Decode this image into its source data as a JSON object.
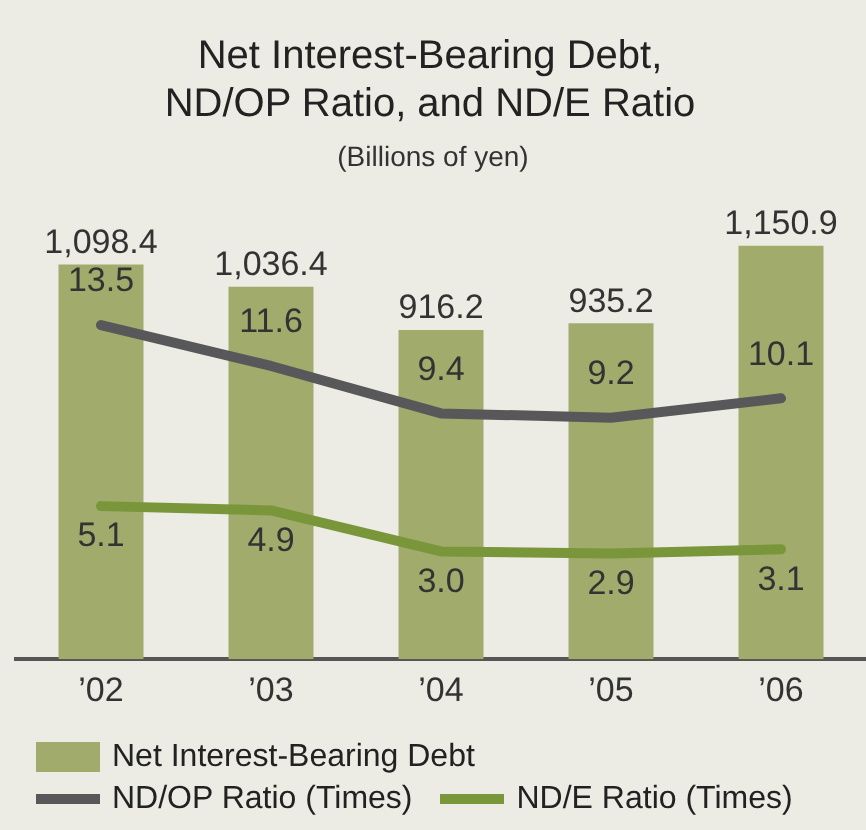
{
  "chart_data": {
    "type": "bar",
    "title": "Net Interest-Bearing Debt, ND/OP Ratio, and ND/E Ratio",
    "subtitle": "(Billions of yen)",
    "categories": [
      "’02",
      "’03",
      "’04",
      "’05",
      "’06"
    ],
    "series": [
      {
        "name": "Net Interest-Bearing Debt",
        "color": "#a0ab6c",
        "values": [
          1098.4,
          1036.4,
          916.2,
          935.2,
          1150.9
        ],
        "value_labels": [
          "1,098.4",
          "1,036.4",
          "916.2",
          "935.2",
          "1,150.9"
        ]
      },
      {
        "name": "ND/OP Ratio (Times)",
        "type": "line",
        "axis": "y2",
        "color": "#58585a",
        "values": [
          13.5,
          11.6,
          9.4,
          9.2,
          10.1
        ],
        "value_labels": [
          "13.5",
          "11.6",
          "9.4",
          "9.2",
          "10.1"
        ]
      },
      {
        "name": "ND/E Ratio (Times)",
        "type": "line",
        "axis": "y2",
        "color": "#7a963a",
        "values": [
          5.1,
          4.9,
          3.0,
          2.9,
          3.1
        ],
        "value_labels": [
          "5.1",
          "4.9",
          "3.0",
          "2.9",
          "3.1"
        ]
      }
    ],
    "tick_labels": "x",
    "legend": "bottom",
    "grid": false,
    "marker": "none",
    "line_style": "solid"
  }
}
